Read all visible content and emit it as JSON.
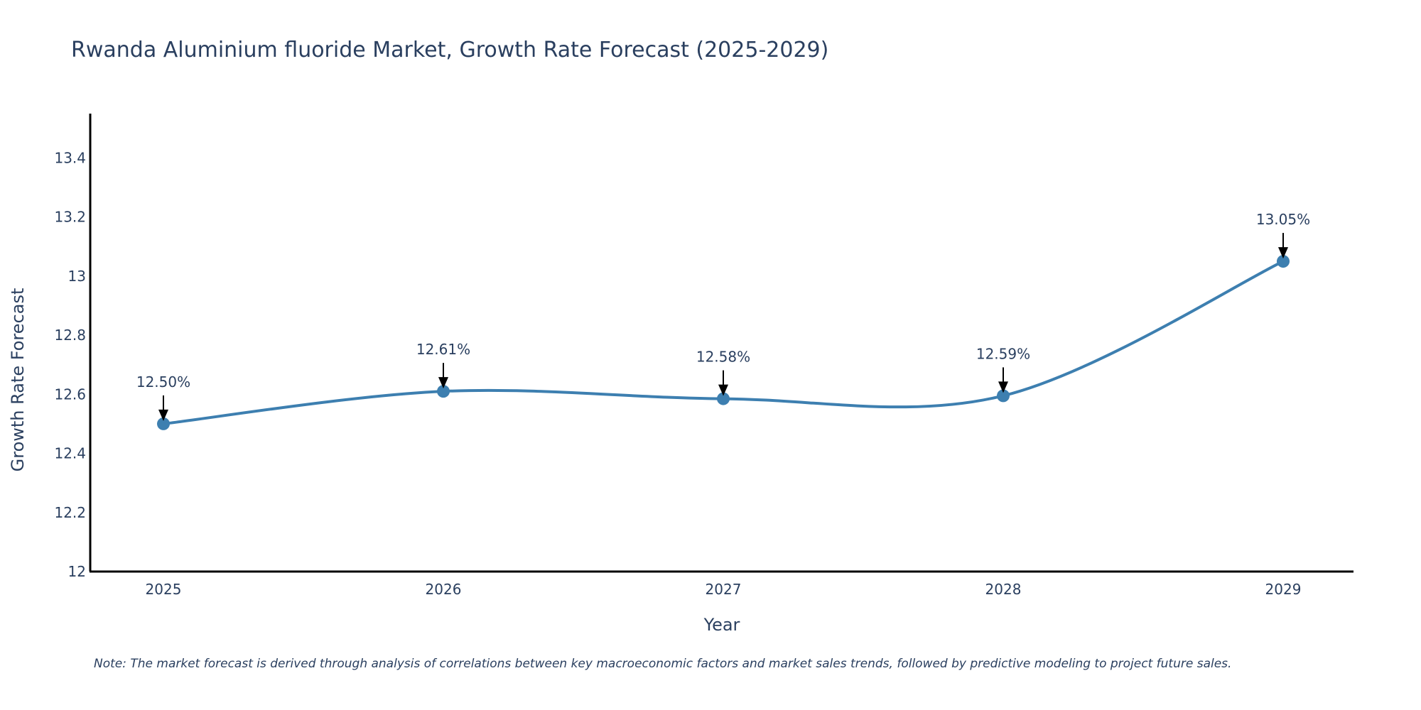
{
  "chart_data": {
    "type": "line",
    "title": "Rwanda Aluminium fluoride Market, Growth Rate Forecast (2025-2029)",
    "xlabel": "Year",
    "ylabel": "Growth Rate Forecast",
    "categories": [
      "2025",
      "2026",
      "2027",
      "2028",
      "2029"
    ],
    "series": [
      {
        "name": "Growth Rate Forecast",
        "values": [
          12.5,
          12.61,
          12.585,
          12.595,
          13.05
        ],
        "data_labels": [
          "12.50%",
          "12.61%",
          "12.58%",
          "12.59%",
          "13.05%"
        ]
      }
    ],
    "ylim": [
      12.0,
      13.55
    ],
    "yticks": [
      12,
      12.2,
      12.4,
      12.6,
      12.8,
      13,
      13.2,
      13.4
    ],
    "ytick_labels": [
      "12",
      "12.2",
      "12.4",
      "12.6",
      "12.8",
      "13",
      "13.2",
      "13.4"
    ],
    "grid": false,
    "line_color": "#3d7fb0",
    "marker_color": "#3d7fb0",
    "note": "Note: The market forecast is derived through analysis of correlations between key macroeconomic factors and market sales trends, followed by predictive modeling to project future sales."
  }
}
